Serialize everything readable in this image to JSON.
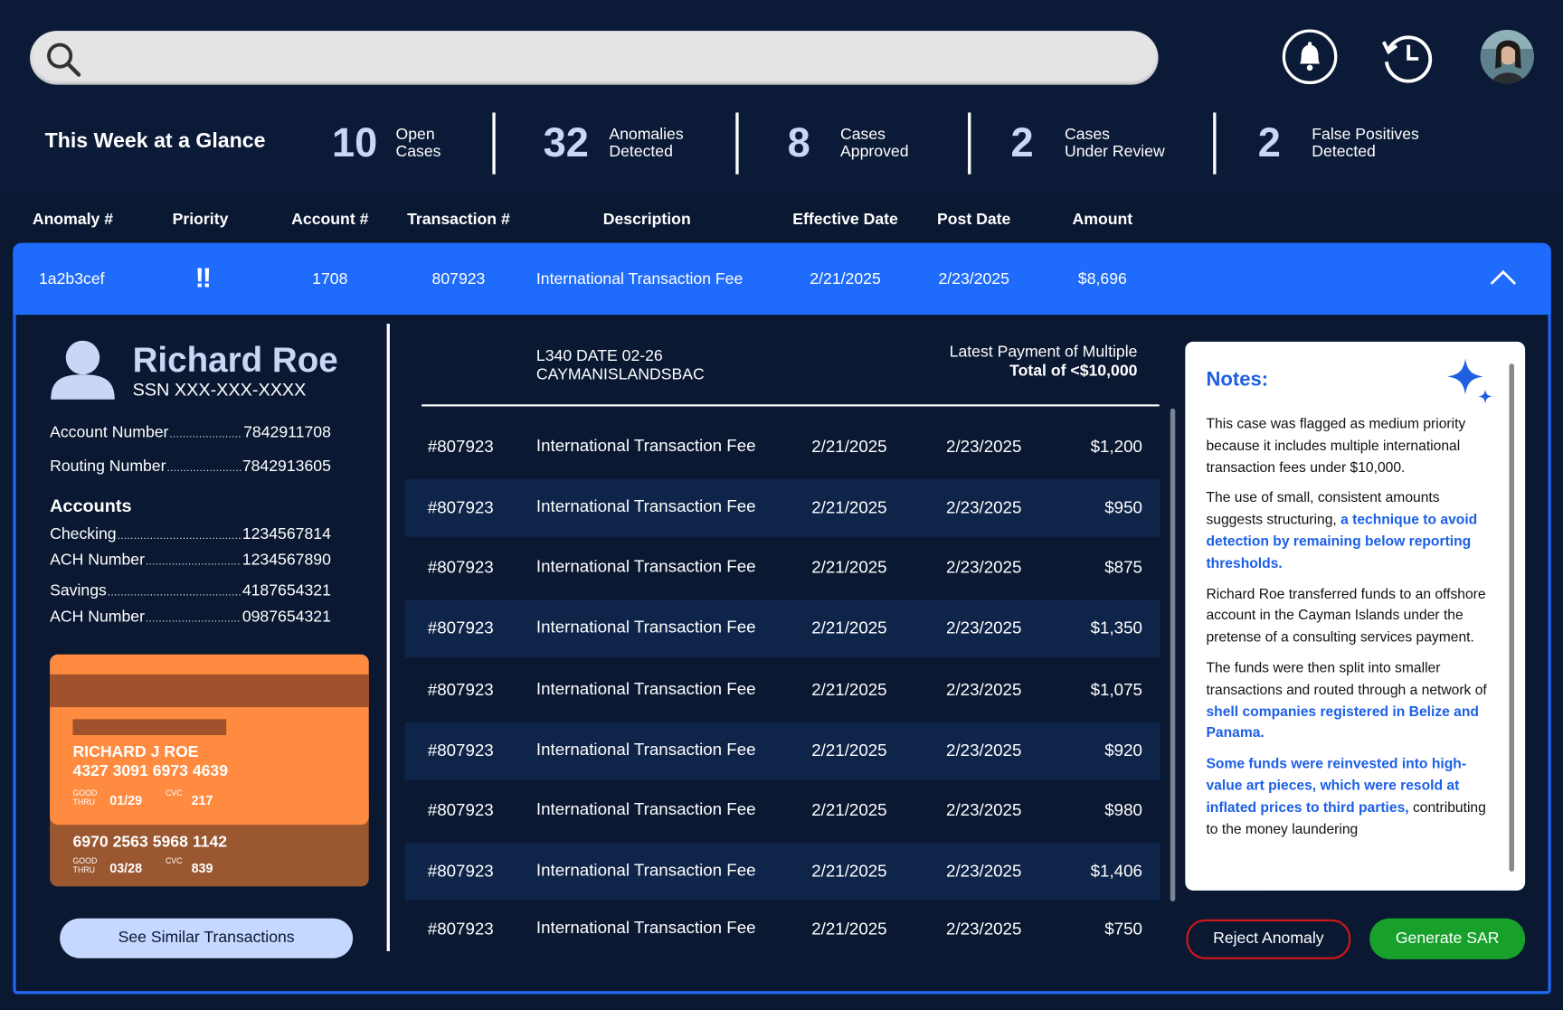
{
  "header": {
    "glance_title": "This Week at a Glance",
    "stats": [
      {
        "value": 10,
        "label": [
          "Open",
          "Cases"
        ]
      },
      {
        "value": 32,
        "label": [
          "Anomalies",
          "Detected"
        ]
      },
      {
        "value": 8,
        "label": [
          "Cases",
          "Approved"
        ]
      },
      {
        "value": 2,
        "label": [
          "Cases",
          "Under Review"
        ]
      },
      {
        "value": 2,
        "label": [
          "False Positives",
          "Detected"
        ]
      }
    ]
  },
  "table": {
    "columns": [
      "Anomaly #",
      "Priority",
      "Account #",
      "Transaction #",
      "Description",
      "Effective Date",
      "Post Date",
      "Amount"
    ],
    "row": [
      "1a2b3cef",
      "!!",
      "1708",
      "807923",
      "International Transaction Fee",
      "2/21/2025",
      "2/23/2025",
      "$8,696"
    ]
  },
  "profile": {
    "name": "Richard Roe",
    "ssn": "SSN XXX-XXX-XXXX",
    "ids": [
      {
        "label": "Account Number",
        "value": "7842911708"
      },
      {
        "label": "Routing Number",
        "value": "7842913605"
      }
    ],
    "accounts_title": "Accounts",
    "accounts": [
      {
        "label": "Checking",
        "value": "1234567814"
      },
      {
        "label": "ACH Number",
        "value": "1234567890"
      },
      {
        "label": "Savings",
        "value": "4187654321"
      },
      {
        "label": "ACH Number",
        "value": "0987654321"
      }
    ],
    "cards": [
      {
        "holder": "RICHARD J ROE",
        "number": "4327 3091 6973 4639",
        "good_thru": [
          "GOOD",
          "THRU"
        ],
        "expiry": "01/29",
        "cvc_label": "CVC",
        "cvc": "217"
      },
      {
        "number": "6970 2563 5968 1142",
        "good_thru": [
          "GOOD",
          "THRU"
        ],
        "expiry": "03/28",
        "cvc_label": "CVC",
        "cvc": "839"
      }
    ],
    "button": "See Similar Transactions"
  },
  "detail": {
    "memo": [
      "L340 DATE 02-26",
      "CAYMANISLANDSBAC"
    ],
    "summary": [
      "Latest Payment of Multiple",
      "Total of <$10,000"
    ],
    "transactions": [
      [
        "#807923",
        "International Transaction Fee",
        "2/21/2025",
        "2/23/2025",
        "$1,200"
      ],
      [
        "#807923",
        "International Transaction Fee",
        "2/21/2025",
        "2/23/2025",
        "$950"
      ],
      [
        "#807923",
        "International Transaction Fee",
        "2/21/2025",
        "2/23/2025",
        "$875"
      ],
      [
        "#807923",
        "International Transaction Fee",
        "2/21/2025",
        "2/23/2025",
        "$1,350"
      ],
      [
        "#807923",
        "International Transaction Fee",
        "2/21/2025",
        "2/23/2025",
        "$1,075"
      ],
      [
        "#807923",
        "International Transaction Fee",
        "2/21/2025",
        "2/23/2025",
        "$920"
      ],
      [
        "#807923",
        "International Transaction Fee",
        "2/21/2025",
        "2/23/2025",
        "$980"
      ],
      [
        "#807923",
        "International Transaction Fee",
        "2/21/2025",
        "2/23/2025",
        "$1,406"
      ],
      [
        "#807923",
        "International Transaction Fee",
        "2/21/2025",
        "2/23/2025",
        "$750"
      ]
    ]
  },
  "notes": {
    "title": "Notes:",
    "paragraphs": [
      [
        {
          "text": "This case was flagged as medium priority because it includes multiple international transaction fees under $10,000.",
          "emphasis": false
        }
      ],
      [
        {
          "text": "The use of small, consistent amounts suggests structuring, ",
          "emphasis": false
        },
        {
          "text": "a technique to avoid detection by remaining below reporting thresholds.",
          "emphasis": true
        }
      ],
      [
        {
          "text": "Richard Roe transferred funds to an offshore account in the Cayman Islands under the pretense of a consulting services payment.",
          "emphasis": false
        }
      ],
      [
        {
          "text": "The funds were then split into smaller transactions and routed through a network of ",
          "emphasis": false
        },
        {
          "text": "shell companies registered in Belize and Panama.",
          "emphasis": true
        }
      ],
      [
        {
          "text": "Some funds were reinvested into high-value art pieces, which were resold at inflated prices to third parties,",
          "emphasis": true
        },
        {
          "text": " contributing to the money laundering",
          "emphasis": false
        }
      ]
    ]
  },
  "actions": {
    "reject": "Reject Anomaly",
    "generate": "Generate SAR"
  }
}
